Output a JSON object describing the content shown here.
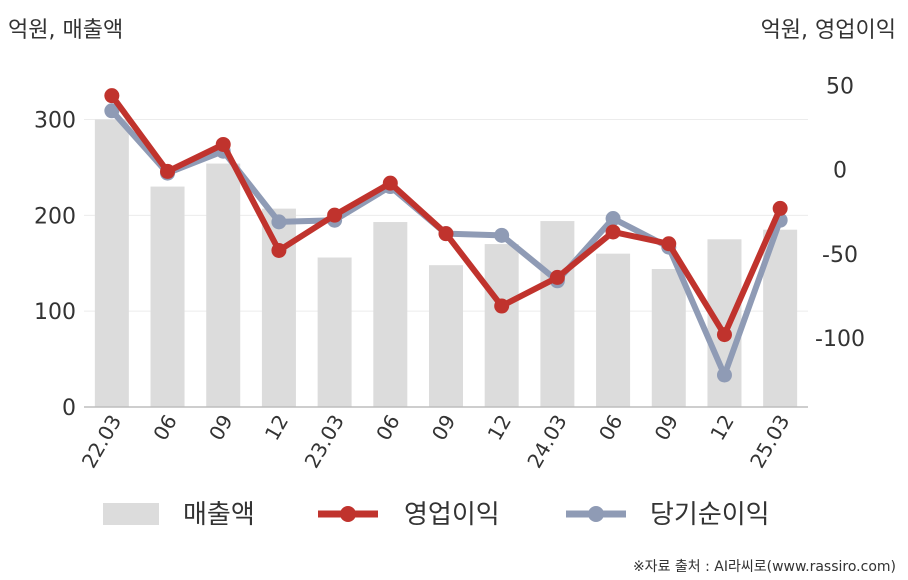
{
  "chart_data": {
    "type": "bar+line",
    "left_unit": "억원, 매출액",
    "right_unit": "억원, 영업이익",
    "categories": [
      "22.03",
      "06",
      "09",
      "12",
      "23.03",
      "06",
      "09",
      "12",
      "24.03",
      "06",
      "09",
      "12",
      "25.03"
    ],
    "left_axis": {
      "ticks": [
        "0",
        "100",
        "200",
        "300"
      ],
      "ylim": [
        0,
        360
      ]
    },
    "right_axis": {
      "ticks": [
        "50",
        "0",
        "-50",
        "-100"
      ],
      "ylim": [
        -141,
        64
      ]
    },
    "series": [
      {
        "name": "매출액",
        "type": "bar",
        "axis": "left",
        "color": "#dcdcdc",
        "values": [
          300,
          230,
          254,
          207,
          156,
          193,
          148,
          170,
          194,
          160,
          144,
          175,
          185
        ]
      },
      {
        "name": "영업이익",
        "type": "line",
        "axis": "right",
        "color": "#c0332d",
        "values": [
          44,
          -1,
          15,
          -48,
          -27,
          -8,
          -38,
          -81,
          -64,
          -37,
          -44,
          -98,
          -23
        ]
      },
      {
        "name": "당기순이익",
        "type": "line",
        "axis": "right",
        "color": "#8f9bb5",
        "values": [
          35,
          -2,
          11,
          -31,
          -30,
          -10,
          -38,
          -39,
          -66,
          -29,
          -46,
          -122,
          -30
        ]
      }
    ],
    "legend": {
      "position": "bottom"
    },
    "source": "※자료 출처 : AI라씨로(www.rassiro.com)"
  }
}
